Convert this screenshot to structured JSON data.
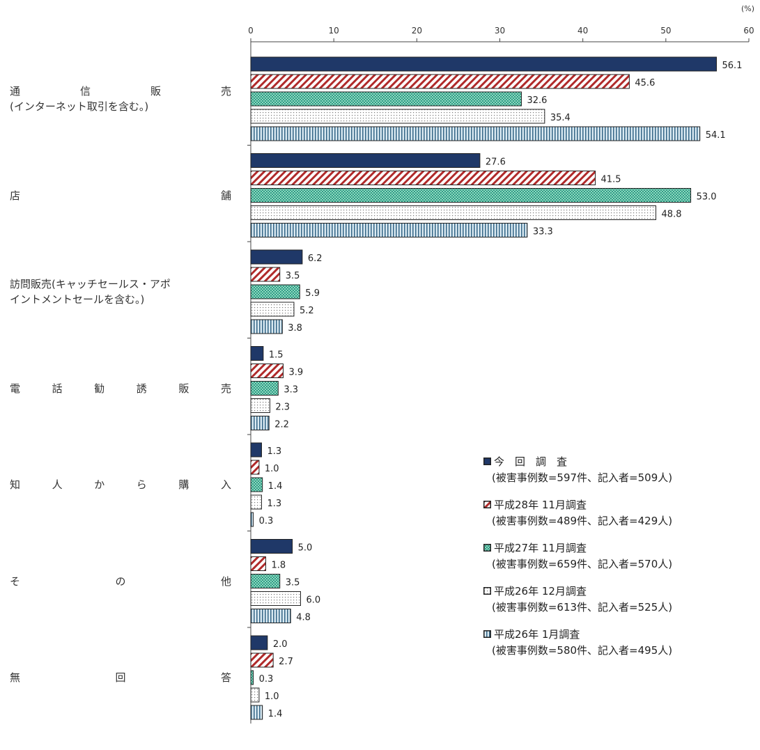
{
  "unit": "(%)",
  "chart_data": {
    "type": "bar",
    "orientation": "horizontal",
    "xlim": [
      0,
      60
    ],
    "xticks": [
      "0",
      "10",
      "20",
      "30",
      "40",
      "50",
      "60"
    ],
    "categories": [
      {
        "line1": [
          "通",
          "信",
          "販",
          "売"
        ],
        "line2": "(インターネット取引を含む。)"
      },
      {
        "line1": [
          "店",
          "舗"
        ],
        "line2": ""
      },
      {
        "line1": [
          "訪問販売(キャッチセールス・アポ"
        ],
        "line2": "イントメントセールを含む。)"
      },
      {
        "line1": [
          "電",
          "話",
          "勧",
          "誘",
          "販",
          "売"
        ],
        "line2": ""
      },
      {
        "line1": [
          "知",
          "人",
          "か",
          "ら",
          "購",
          "入"
        ],
        "line2": ""
      },
      {
        "line1": [
          "そ",
          "の",
          "他"
        ],
        "line2": ""
      },
      {
        "line1": [
          "無",
          "回",
          "答"
        ],
        "line2": ""
      }
    ],
    "series": [
      {
        "name": "今　回　調　査",
        "note": "(被害事例数=597件、記入者=509人)",
        "pattern": "solid",
        "color": "#1f3868",
        "values": [
          56.1,
          27.6,
          6.2,
          1.5,
          1.3,
          5.0,
          2.0
        ],
        "labels": [
          "56.1",
          "27.6",
          "6.2",
          "1.5",
          "1.3",
          "5.0",
          "2.0"
        ]
      },
      {
        "name": "平成28年 11月調査",
        "note": "(被害事例数=489件、記入者=429人)",
        "pattern": "diagonal",
        "color": "#b02a2a",
        "values": [
          45.6,
          41.5,
          3.5,
          3.9,
          1.0,
          1.8,
          2.7
        ],
        "labels": [
          "45.6",
          "41.5",
          "3.5",
          "3.9",
          "1.0",
          "1.8",
          "2.7"
        ]
      },
      {
        "name": "平成27年 11月調査",
        "note": "(被害事例数=659件、記入者=570人)",
        "pattern": "checker",
        "color": "#2f9e86",
        "values": [
          32.6,
          53.0,
          5.9,
          3.3,
          1.4,
          3.5,
          0.3
        ],
        "labels": [
          "32.6",
          "53.0",
          "5.9",
          "3.3",
          "1.4",
          "3.5",
          "0.3"
        ]
      },
      {
        "name": "平成26年 12月調査",
        "note": "(被害事例数=613件、記入者=525人)",
        "pattern": "dots",
        "color": "#888888",
        "values": [
          35.4,
          48.8,
          5.2,
          2.3,
          1.3,
          6.0,
          1.0
        ],
        "labels": [
          "35.4",
          "48.8",
          "5.2",
          "2.3",
          "1.3",
          "6.0",
          "1.0"
        ]
      },
      {
        "name": "平成26年 1月調査",
        "note": "(被害事例数=580件、記入者=495人)",
        "pattern": "vertical",
        "color": "#3a6a8a",
        "values": [
          54.1,
          33.3,
          3.8,
          2.2,
          0.3,
          4.8,
          1.4
        ],
        "labels": [
          "54.1",
          "33.3",
          "3.8",
          "2.2",
          "0.3",
          "4.8",
          "1.4"
        ]
      }
    ]
  }
}
